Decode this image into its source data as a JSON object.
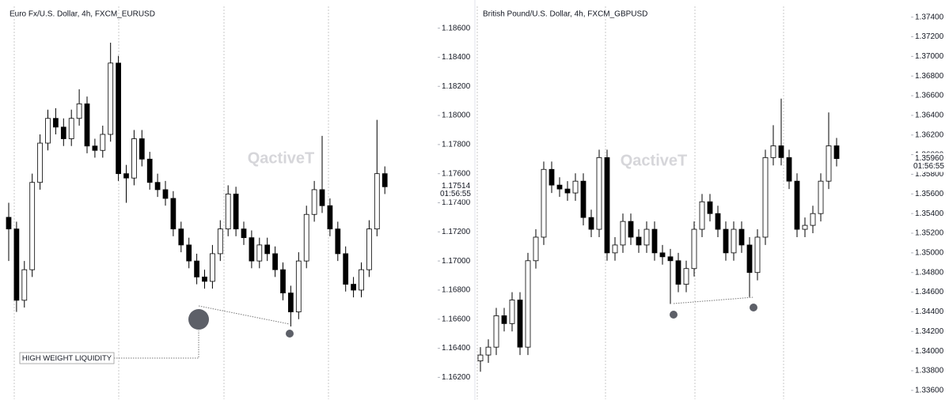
{
  "chart_data": [
    {
      "type": "candlestick",
      "title": "Euro Fx/U.S. Dollar, 4h, FXCM_EURUSD",
      "watermark": "QactiveT",
      "annotation": "HIGH WEIGHT LIQUIDITY",
      "ylim": [
        1.1605,
        1.1875
      ],
      "yticks": [
        {
          "value": 1.186,
          "label": "1.18600"
        },
        {
          "value": 1.184,
          "label": "1.18400"
        },
        {
          "value": 1.182,
          "label": "1.18200"
        },
        {
          "value": 1.18,
          "label": "1.18000"
        },
        {
          "value": 1.178,
          "label": "1.17800"
        },
        {
          "value": 1.176,
          "label": "1.17600"
        },
        {
          "value": 1.174,
          "label": "1.17400"
        },
        {
          "value": 1.172,
          "label": "1.17200"
        },
        {
          "value": 1.17,
          "label": "1.17000"
        },
        {
          "value": 1.168,
          "label": "1.16800"
        },
        {
          "value": 1.166,
          "label": "1.16600"
        },
        {
          "value": 1.164,
          "label": "1.16400"
        },
        {
          "value": 1.162,
          "label": "1.16200"
        }
      ],
      "last_price": 1.17514,
      "countdown": "01:56:55",
      "up_color": "#ffffff",
      "down_color": "#000000",
      "border_color": "#000000",
      "open": [
        1.173,
        1.1722,
        1.1673,
        1.1694,
        1.1754,
        1.1781,
        1.1798,
        1.1792,
        1.1784,
        1.1798,
        1.1808,
        1.1779,
        1.1776,
        1.1787,
        1.1836,
        1.176,
        1.1757,
        1.1784,
        1.177,
        1.1754,
        1.1749,
        1.1743,
        1.1722,
        1.1711,
        1.17,
        1.1689,
        1.1686,
        1.1705,
        1.1722,
        1.1746,
        1.1722,
        1.1716,
        1.17,
        1.1711,
        1.1705,
        1.1694,
        1.1678,
        1.1665,
        1.17,
        1.1732,
        1.1749,
        1.1738,
        1.1722,
        1.1705,
        1.1684,
        1.168,
        1.1694,
        1.1722,
        1.176
      ],
      "high": [
        1.174,
        1.1727,
        1.17,
        1.176,
        1.1787,
        1.1804,
        1.1805,
        1.1798,
        1.1804,
        1.1818,
        1.1813,
        1.1784,
        1.1793,
        1.185,
        1.1841,
        1.1766,
        1.179,
        1.179,
        1.1775,
        1.176,
        1.1755,
        1.1748,
        1.1727,
        1.1716,
        1.1705,
        1.1694,
        1.1711,
        1.1728,
        1.1752,
        1.1751,
        1.1727,
        1.1721,
        1.1716,
        1.1716,
        1.171,
        1.1699,
        1.1683,
        1.1706,
        1.1738,
        1.1755,
        1.1786,
        1.1743,
        1.1727,
        1.171,
        1.1689,
        1.1699,
        1.1728,
        1.1797,
        1.1765
      ],
      "low": [
        1.17,
        1.1665,
        1.1668,
        1.1689,
        1.1749,
        1.1776,
        1.1787,
        1.1779,
        1.1779,
        1.1793,
        1.1774,
        1.1771,
        1.1771,
        1.1782,
        1.1755,
        1.174,
        1.1752,
        1.1765,
        1.1749,
        1.1744,
        1.1738,
        1.1717,
        1.1706,
        1.1695,
        1.1684,
        1.1681,
        1.1681,
        1.17,
        1.1717,
        1.1717,
        1.1711,
        1.1695,
        1.1695,
        1.17,
        1.1689,
        1.1673,
        1.1655,
        1.166,
        1.1695,
        1.1727,
        1.1733,
        1.1717,
        1.17,
        1.1679,
        1.1675,
        1.1675,
        1.1689,
        1.1717,
        1.1746
      ],
      "close": [
        1.1722,
        1.1673,
        1.1694,
        1.1754,
        1.1781,
        1.1798,
        1.1792,
        1.1784,
        1.1798,
        1.1808,
        1.1779,
        1.1776,
        1.1787,
        1.1836,
        1.176,
        1.1757,
        1.1784,
        1.177,
        1.1754,
        1.1749,
        1.1743,
        1.1722,
        1.1711,
        1.17,
        1.1689,
        1.1686,
        1.1705,
        1.1722,
        1.1746,
        1.1722,
        1.1716,
        1.17,
        1.1711,
        1.1705,
        1.1694,
        1.1678,
        1.1665,
        1.17,
        1.1732,
        1.1749,
        1.1738,
        1.1722,
        1.1705,
        1.1684,
        1.168,
        1.1694,
        1.1722,
        1.176,
        1.1751
      ]
    },
    {
      "type": "candlestick",
      "title": "British Pound/U.S. Dollar, 4h, FXCM_GBPUSD",
      "watermark": "QactiveT",
      "ylim": [
        1.3351,
        1.3751
      ],
      "yticks": [
        {
          "value": 1.374,
          "label": "1.37400"
        },
        {
          "value": 1.372,
          "label": "1.37200"
        },
        {
          "value": 1.37,
          "label": "1.37000"
        },
        {
          "value": 1.368,
          "label": "1.36800"
        },
        {
          "value": 1.366,
          "label": "1.36600"
        },
        {
          "value": 1.364,
          "label": "1.36400"
        },
        {
          "value": 1.362,
          "label": "1.36200"
        },
        {
          "value": 1.36,
          "label": "1.36000"
        },
        {
          "value": 1.358,
          "label": "1.35800"
        },
        {
          "value": 1.356,
          "label": "1.35600"
        },
        {
          "value": 1.354,
          "label": "1.35400"
        },
        {
          "value": 1.352,
          "label": "1.35200"
        },
        {
          "value": 1.35,
          "label": "1.35000"
        },
        {
          "value": 1.348,
          "label": "1.34800"
        },
        {
          "value": 1.346,
          "label": "1.34600"
        },
        {
          "value": 1.344,
          "label": "1.34400"
        },
        {
          "value": 1.342,
          "label": "1.34200"
        },
        {
          "value": 1.34,
          "label": "1.34000"
        },
        {
          "value": 1.338,
          "label": "1.33800"
        },
        {
          "value": 1.336,
          "label": "1.33600"
        }
      ],
      "last_price": {
        "value": 1.3596,
        "label": "1.35960"
      },
      "countdown": "01:56:55",
      "up_color": "#ffffff",
      "down_color": "#000000",
      "border_color": "#000000",
      "open": [
        1.339,
        1.3396,
        1.3404,
        1.3436,
        1.3428,
        1.3452,
        1.3404,
        1.3492,
        1.3516,
        1.3585,
        1.3569,
        1.3565,
        1.3561,
        1.3573,
        1.3536,
        1.3524,
        1.3597,
        1.35,
        1.3508,
        1.3532,
        1.3516,
        1.3508,
        1.3524,
        1.35,
        1.3496,
        1.3492,
        1.3468,
        1.3484,
        1.3524,
        1.3552,
        1.354,
        1.3524,
        1.35,
        1.3524,
        1.3508,
        1.348,
        1.3516,
        1.3597,
        1.3609,
        1.3597,
        1.3573,
        1.3524,
        1.3528,
        1.354,
        1.3573,
        1.3609
      ],
      "high": [
        1.3404,
        1.3412,
        1.3444,
        1.3444,
        1.346,
        1.346,
        1.35,
        1.3524,
        1.3593,
        1.3593,
        1.3577,
        1.3573,
        1.3581,
        1.3581,
        1.3544,
        1.3605,
        1.3605,
        1.3516,
        1.354,
        1.354,
        1.3524,
        1.3532,
        1.3532,
        1.3508,
        1.3504,
        1.35,
        1.3492,
        1.3532,
        1.356,
        1.356,
        1.3548,
        1.3532,
        1.3532,
        1.3532,
        1.3516,
        1.3524,
        1.3605,
        1.363,
        1.3657,
        1.3605,
        1.3581,
        1.3536,
        1.3548,
        1.3581,
        1.3643,
        1.3617
      ],
      "low": [
        1.3379,
        1.3388,
        1.3396,
        1.342,
        1.342,
        1.3396,
        1.3396,
        1.3484,
        1.3508,
        1.3561,
        1.3557,
        1.3553,
        1.3553,
        1.3528,
        1.3516,
        1.3516,
        1.3492,
        1.3492,
        1.35,
        1.3508,
        1.35,
        1.35,
        1.3492,
        1.3488,
        1.3448,
        1.346,
        1.346,
        1.3476,
        1.3516,
        1.3532,
        1.3516,
        1.3492,
        1.3492,
        1.35,
        1.3455,
        1.3472,
        1.3508,
        1.3589,
        1.3589,
        1.3565,
        1.3516,
        1.3516,
        1.352,
        1.3532,
        1.3565,
        1.3588
      ],
      "close": [
        1.3396,
        1.3404,
        1.3436,
        1.3428,
        1.3452,
        1.3404,
        1.3492,
        1.3516,
        1.3585,
        1.3569,
        1.3565,
        1.3561,
        1.3573,
        1.3536,
        1.3524,
        1.3597,
        1.35,
        1.3508,
        1.3532,
        1.3516,
        1.3508,
        1.3524,
        1.35,
        1.3496,
        1.3492,
        1.3468,
        1.3484,
        1.3524,
        1.3552,
        1.354,
        1.3524,
        1.35,
        1.3524,
        1.3508,
        1.348,
        1.3516,
        1.3597,
        1.3609,
        1.3597,
        1.3573,
        1.3524,
        1.3528,
        1.354,
        1.3573,
        1.3609,
        1.3596
      ]
    }
  ]
}
